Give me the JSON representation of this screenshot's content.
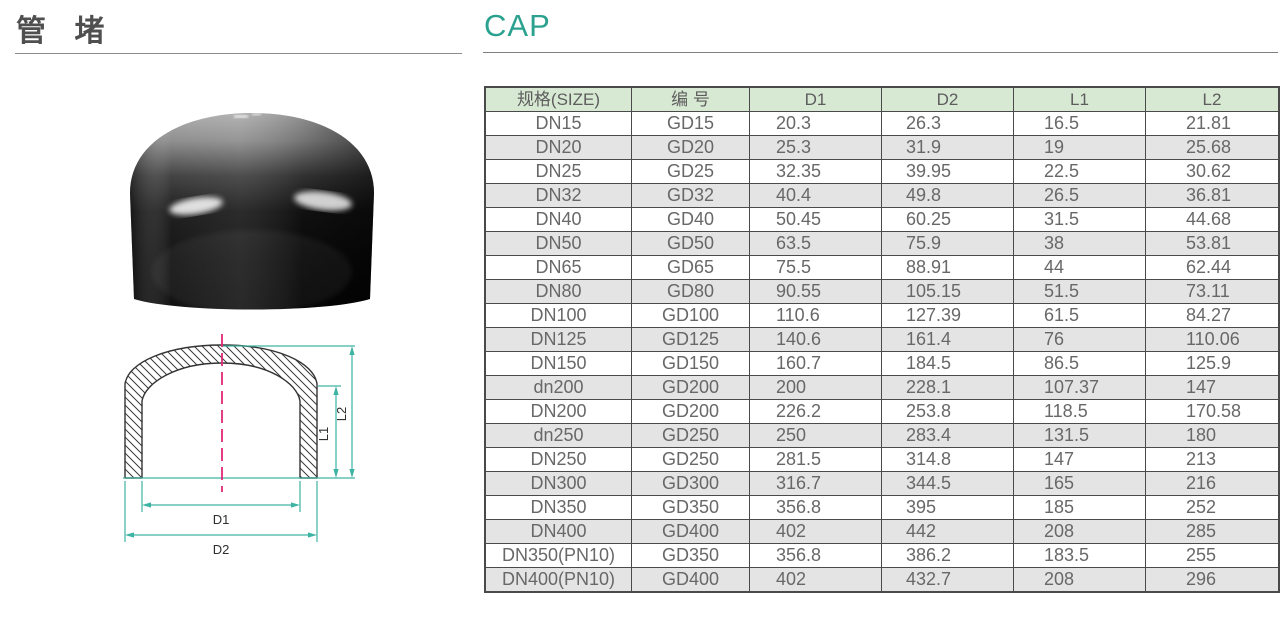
{
  "header": {
    "title_cn": "管 堵",
    "title_en": "CAP"
  },
  "colors": {
    "accent_teal": "#2ba18f",
    "dimension_line_teal": "#3db3a3",
    "centerline_pink": "#e02878",
    "table_header_bg": "#d7e8d3",
    "table_alt_row_bg": "#e4e4e5",
    "table_border": "#4a4a4a",
    "cell_text": "#686868"
  },
  "figure": {
    "photo": "black-pvc-pipe-cap",
    "drawing_labels": {
      "d1": "D1",
      "d2": "D2",
      "l1": "L1",
      "l2": "L2"
    }
  },
  "table": {
    "columns": [
      "规格(SIZE)",
      "编 号",
      "D1",
      "D2",
      "L1",
      "L2"
    ],
    "rows": [
      [
        "DN15",
        "GD15",
        "20.3",
        "26.3",
        "16.5",
        "21.81"
      ],
      [
        "DN20",
        "GD20",
        "25.3",
        "31.9",
        "19",
        "25.68"
      ],
      [
        "DN25",
        "GD25",
        "32.35",
        "39.95",
        "22.5",
        "30.62"
      ],
      [
        "DN32",
        "GD32",
        "40.4",
        "49.8",
        "26.5",
        "36.81"
      ],
      [
        "DN40",
        "GD40",
        "50.45",
        "60.25",
        "31.5",
        "44.68"
      ],
      [
        "DN50",
        "GD50",
        "63.5",
        "75.9",
        "38",
        "53.81"
      ],
      [
        "DN65",
        "GD65",
        "75.5",
        "88.91",
        "44",
        "62.44"
      ],
      [
        "DN80",
        "GD80",
        "90.55",
        "105.15",
        "51.5",
        "73.11"
      ],
      [
        "DN100",
        "GD100",
        "110.6",
        "127.39",
        "61.5",
        "84.27"
      ],
      [
        "DN125",
        "GD125",
        "140.6",
        "161.4",
        "76",
        "110.06"
      ],
      [
        "DN150",
        "GD150",
        "160.7",
        "184.5",
        "86.5",
        "125.9"
      ],
      [
        "dn200",
        "GD200",
        "200",
        "228.1",
        "107.37",
        "147"
      ],
      [
        "DN200",
        "GD200",
        "226.2",
        "253.8",
        "118.5",
        "170.58"
      ],
      [
        "dn250",
        "GD250",
        "250",
        "283.4",
        "131.5",
        "180"
      ],
      [
        "DN250",
        "GD250",
        "281.5",
        "314.8",
        "147",
        "213"
      ],
      [
        "DN300",
        "GD300",
        "316.7",
        "344.5",
        "165",
        "216"
      ],
      [
        "DN350",
        "GD350",
        "356.8",
        "395",
        "185",
        "252"
      ],
      [
        "DN400",
        "GD400",
        "402",
        "442",
        "208",
        "285"
      ],
      [
        "DN350(PN10)",
        "GD350",
        "356.8",
        "386.2",
        "183.5",
        "255"
      ],
      [
        "DN400(PN10)",
        "GD400",
        "402",
        "432.7",
        "208",
        "296"
      ]
    ]
  }
}
